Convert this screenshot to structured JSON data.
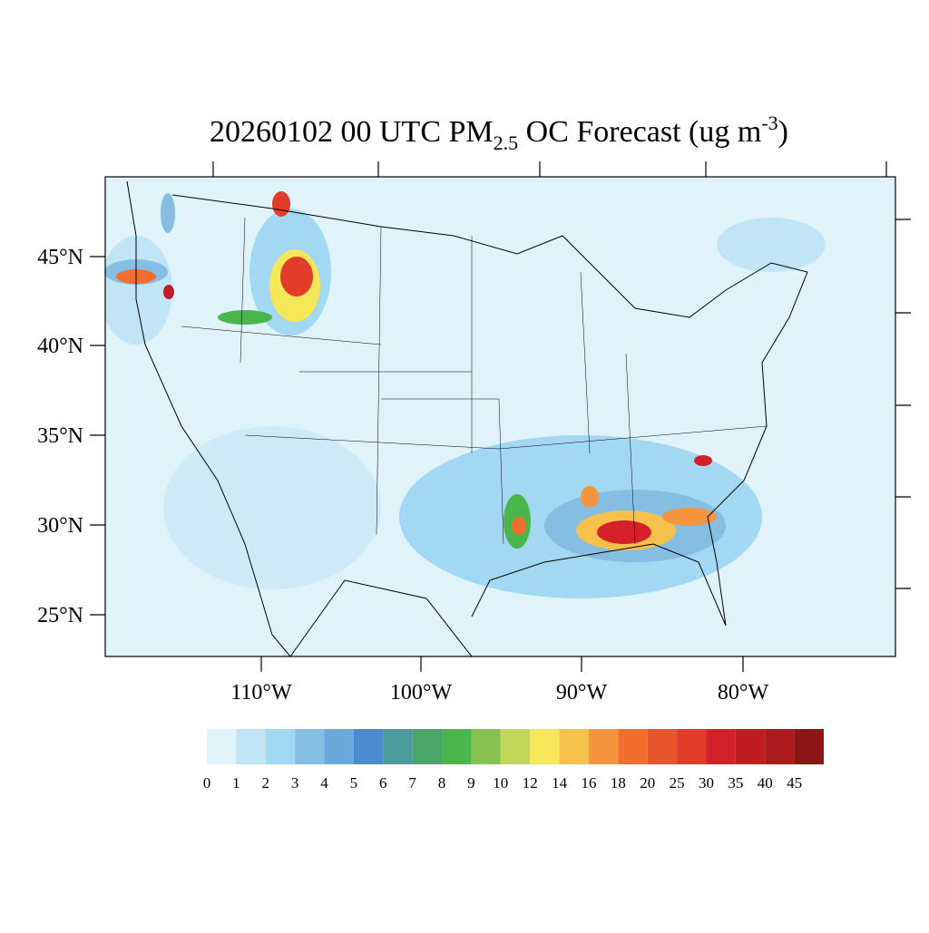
{
  "title": {
    "text": "20260102 00 UTC PM",
    "subscript": "2.5",
    "middle": " OC Forecast (ug m",
    "superscript": "-3",
    "end": ")"
  },
  "lat_labels": [
    "45°N",
    "40°N",
    "35°N",
    "30°N",
    "25°N"
  ],
  "lon_labels": [
    "110°W",
    "100°W",
    "90°W",
    "80°W"
  ],
  "colorbar": {
    "levels": [
      0,
      1,
      2,
      3,
      4,
      5,
      6,
      7,
      8,
      9,
      10,
      12,
      14,
      16,
      18,
      20,
      25,
      30,
      35,
      40,
      45
    ],
    "colors": [
      "#e0f3fa",
      "#c2e5f5",
      "#a3d8f2",
      "#85bde3",
      "#68a8da",
      "#4a8ccf",
      "#4a9c9c",
      "#4aa56b",
      "#4ab54a",
      "#86c24f",
      "#c2d65a",
      "#f5e65a",
      "#f7c04a",
      "#f5963e",
      "#f26e2e",
      "#e8552a",
      "#e03c28",
      "#d42028",
      "#bf1c24",
      "#aa1a1f",
      "#8c1516"
    ]
  }
}
